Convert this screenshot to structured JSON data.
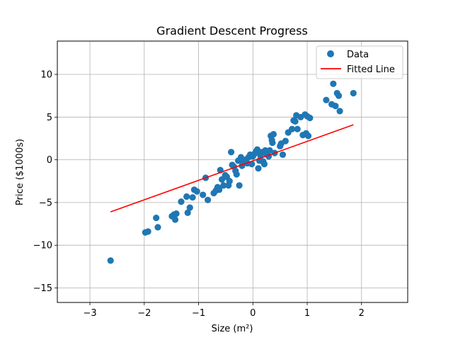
{
  "chart_data": {
    "type": "scatter",
    "title": "Gradient Descent Progress",
    "xlabel": "Size (m²)",
    "ylabel": "Price ($1000s)",
    "xlim": [
      -3.6,
      2.85
    ],
    "ylim": [
      -16.7,
      13.9
    ],
    "xticks": [
      -3,
      -2,
      -1,
      0,
      1,
      2
    ],
    "yticks": [
      -15,
      -10,
      -5,
      0,
      5,
      10
    ],
    "xtick_labels": [
      "−3",
      "−2",
      "−1",
      "0",
      "1",
      "2"
    ],
    "ytick_labels": [
      "−15",
      "−10",
      "−5",
      "0",
      "5",
      "10"
    ],
    "grid": true,
    "legend_position": "top-right",
    "legend": [
      "Data",
      "Fitted Line"
    ],
    "colors": {
      "scatter": "#1f77b4",
      "line": "#ff0000",
      "grid": "#b0b0b0"
    },
    "series": [
      {
        "name": "Data",
        "type": "scatter",
        "points": [
          [
            -2.62,
            -11.8
          ],
          [
            -1.98,
            -8.5
          ],
          [
            -1.93,
            -8.4
          ],
          [
            -1.78,
            -6.8
          ],
          [
            -1.75,
            -7.9
          ],
          [
            -1.49,
            -6.6
          ],
          [
            -1.45,
            -6.4
          ],
          [
            -1.43,
            -7.0
          ],
          [
            -1.41,
            -6.3
          ],
          [
            -1.32,
            -4.9
          ],
          [
            -1.22,
            -4.3
          ],
          [
            -1.2,
            -6.2
          ],
          [
            -1.16,
            -5.6
          ],
          [
            -1.11,
            -4.4
          ],
          [
            -1.08,
            -3.5
          ],
          [
            -1.03,
            -3.7
          ],
          [
            -0.92,
            -4.1
          ],
          [
            -0.87,
            -2.1
          ],
          [
            -0.83,
            -4.7
          ],
          [
            -0.72,
            -3.9
          ],
          [
            -0.68,
            -3.6
          ],
          [
            -0.65,
            -3.2
          ],
          [
            -0.62,
            -3.5
          ],
          [
            -0.6,
            -1.2
          ],
          [
            -0.57,
            -2.3
          ],
          [
            -0.54,
            -3.0
          ],
          [
            -0.51,
            -1.8
          ],
          [
            -0.48,
            -2.0
          ],
          [
            -0.45,
            -3.0
          ],
          [
            -0.43,
            -2.5
          ],
          [
            -0.4,
            0.9
          ],
          [
            -0.38,
            -0.6
          ],
          [
            -0.35,
            -0.8
          ],
          [
            -0.32,
            -1.3
          ],
          [
            -0.3,
            -1.7
          ],
          [
            -0.27,
            -0.1
          ],
          [
            -0.25,
            -3.0
          ],
          [
            -0.22,
            0.3
          ],
          [
            -0.2,
            -0.7
          ],
          [
            -0.17,
            -0.3
          ],
          [
            -0.14,
            0.0
          ],
          [
            -0.1,
            -0.4
          ],
          [
            -0.08,
            0.3
          ],
          [
            -0.05,
            0.6
          ],
          [
            -0.02,
            -0.5
          ],
          [
            0.0,
            0.4
          ],
          [
            0.03,
            0.7
          ],
          [
            0.06,
            1.0
          ],
          [
            0.08,
            1.2
          ],
          [
            0.1,
            -1.0
          ],
          [
            0.12,
            -0.1
          ],
          [
            0.14,
            0.5
          ],
          [
            0.17,
            0.9
          ],
          [
            0.19,
            -0.2
          ],
          [
            0.21,
            -0.5
          ],
          [
            0.23,
            1.1
          ],
          [
            0.25,
            0.7
          ],
          [
            0.27,
            1.0
          ],
          [
            0.29,
            0.4
          ],
          [
            0.31,
            1.1
          ],
          [
            0.33,
            2.8
          ],
          [
            0.35,
            2.3
          ],
          [
            0.36,
            2.0
          ],
          [
            0.38,
            3.0
          ],
          [
            0.4,
            0.8
          ],
          [
            0.5,
            1.6
          ],
          [
            0.52,
            1.9
          ],
          [
            0.55,
            0.6
          ],
          [
            0.6,
            2.2
          ],
          [
            0.65,
            3.2
          ],
          [
            0.72,
            3.6
          ],
          [
            0.75,
            4.6
          ],
          [
            0.78,
            4.5
          ],
          [
            0.8,
            5.2
          ],
          [
            0.82,
            3.6
          ],
          [
            0.88,
            5.0
          ],
          [
            0.92,
            2.9
          ],
          [
            0.96,
            5.3
          ],
          [
            0.98,
            3.1
          ],
          [
            1.0,
            5.1
          ],
          [
            1.02,
            2.8
          ],
          [
            1.05,
            4.9
          ],
          [
            1.35,
            7.0
          ],
          [
            1.45,
            6.5
          ],
          [
            1.48,
            8.9
          ],
          [
            1.52,
            6.3
          ],
          [
            1.55,
            7.8
          ],
          [
            1.58,
            7.5
          ],
          [
            1.6,
            5.7
          ],
          [
            1.85,
            7.8
          ]
        ]
      },
      {
        "name": "Fitted Line",
        "type": "line",
        "points": [
          [
            -2.62,
            -6.1
          ],
          [
            1.85,
            4.1
          ]
        ]
      }
    ]
  }
}
